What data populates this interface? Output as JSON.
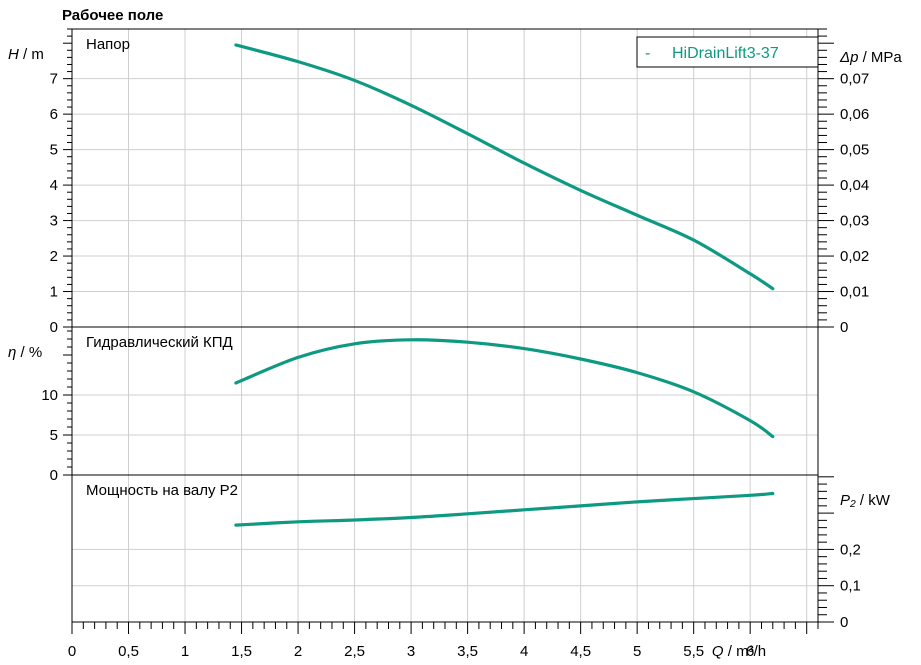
{
  "page": {
    "title": "Рабочее поле"
  },
  "chart_data": {
    "type": "line",
    "x": {
      "label_symbol": "Q",
      "label_unit": "m³/h",
      "range": [
        0,
        6.6
      ],
      "ticks": [
        "0",
        "0,5",
        "1",
        "1,5",
        "2",
        "2,5",
        "3",
        "3,5",
        "4",
        "4,5",
        "5",
        "5,5",
        "6"
      ]
    },
    "legend": {
      "marker": "-",
      "name": "HiDrainLift3-37",
      "color": "#0e9a82",
      "placement": "top-right"
    },
    "panels": [
      {
        "id": "head",
        "title": "Напор",
        "y_left": {
          "symbol": "H",
          "unit": "m",
          "range": [
            0,
            8.4
          ],
          "ticks": [
            "0",
            "1",
            "2",
            "3",
            "4",
            "5",
            "6",
            "7"
          ]
        },
        "y_right": {
          "symbol": "Δp",
          "unit": "MPa",
          "range": [
            0,
            0.084
          ],
          "ticks": [
            "0",
            "0,01",
            "0,02",
            "0,03",
            "0,04",
            "0,05",
            "0,06",
            "0,07"
          ]
        },
        "series": [
          {
            "name": "HiDrainLift3-37",
            "x": [
              1.45,
              2.0,
              2.5,
              3.0,
              3.5,
              4.0,
              4.5,
              5.0,
              5.5,
              6.0,
              6.2
            ],
            "y": [
              7.95,
              7.48,
              6.95,
              6.25,
              5.45,
              4.62,
              3.85,
              3.15,
              2.45,
              1.5,
              1.08
            ]
          }
        ]
      },
      {
        "id": "efficiency",
        "title": "Гидравлический КПД",
        "y_left": {
          "symbol": "η",
          "unit": "%",
          "range": [
            0,
            18.5
          ],
          "ticks": [
            "0",
            "5",
            "10"
          ]
        },
        "series": [
          {
            "name": "HiDrainLift3-37",
            "x": [
              1.45,
              2.0,
              2.5,
              3.0,
              3.5,
              4.0,
              4.5,
              5.0,
              5.5,
              6.0,
              6.2
            ],
            "y": [
              11.5,
              14.7,
              16.4,
              16.9,
              16.6,
              15.8,
              14.5,
              12.8,
              10.4,
              6.8,
              4.8
            ]
          }
        ]
      },
      {
        "id": "power",
        "title": "Мощность на валу P2",
        "y_right": {
          "symbol": "P₂",
          "unit": "kW",
          "range": [
            0,
            0.405
          ],
          "ticks": [
            "0",
            "0,1",
            "0,2"
          ]
        },
        "series": [
          {
            "name": "HiDrainLift3-37",
            "x": [
              1.45,
              2.0,
              2.5,
              3.0,
              3.5,
              4.0,
              4.5,
              5.0,
              5.5,
              6.0,
              6.2
            ],
            "y": [
              0.267,
              0.276,
              0.281,
              0.288,
              0.298,
              0.309,
              0.32,
              0.331,
              0.34,
              0.349,
              0.354
            ]
          }
        ]
      }
    ]
  }
}
